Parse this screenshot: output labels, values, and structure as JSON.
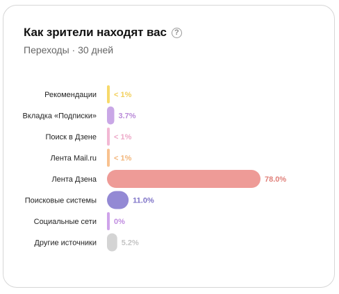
{
  "card": {
    "title": "Как зрители находят вас",
    "help_icon": "question-circle-icon",
    "subtitle": "Переходы · 30 дней"
  },
  "chart_data": {
    "type": "bar",
    "orientation": "horizontal",
    "xlim": [
      0,
      78
    ],
    "categories": [
      "Рекомендации",
      "Вкладка «Подписки»",
      "Поиск в Дзене",
      "Лента Mail.ru",
      "Лента Дзена",
      "Поисковые системы",
      "Социальные сети",
      "Другие источники"
    ],
    "values": [
      0.5,
      3.7,
      0.5,
      0.5,
      78.0,
      11.0,
      0,
      5.2
    ],
    "labels": [
      "< 1%",
      "3.7%",
      "< 1%",
      "< 1%",
      "78.0%",
      "11.0%",
      "0%",
      "5.2%"
    ],
    "colors": [
      "#f7d96b",
      "#c9a7e6",
      "#f2b8d4",
      "#f8c18f",
      "#ee9b97",
      "#9389d4",
      "#cfa3ea",
      "#d4d4d4"
    ],
    "label_colors": [
      "#f2cf5a",
      "#b98ad8",
      "#eda8c8",
      "#f2b57a",
      "#e0807a",
      "#7f74c8",
      "#c08ce0",
      "#c4c4c4"
    ]
  }
}
